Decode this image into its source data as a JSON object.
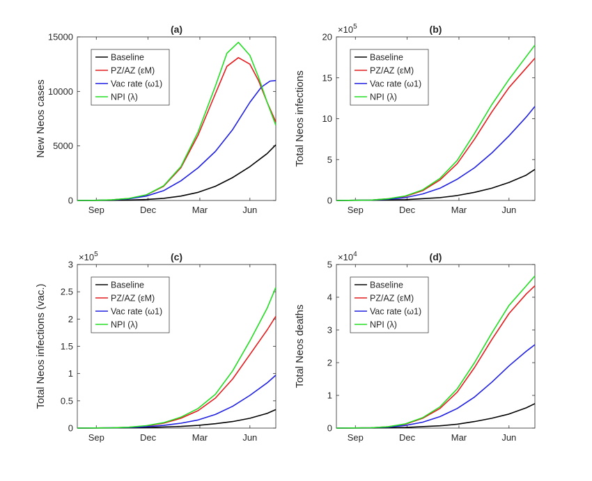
{
  "chart_data": [
    {
      "type": "line",
      "title": "(a)",
      "xlabel": "",
      "ylabel": "New Neos cases",
      "multiplier": "",
      "x_ticks": [
        "Sep",
        "Dec",
        "Mar",
        "Jun"
      ],
      "ylim": [
        0,
        15000
      ],
      "y_ticks": [
        "0",
        "5000",
        "10000",
        "15000"
      ],
      "legend_position": "top-left",
      "series": [
        {
          "name": "Baseline",
          "color": "#000000",
          "x": [
            0,
            30,
            60,
            90,
            120,
            150,
            180,
            210,
            240,
            270,
            300,
            330,
            345
          ],
          "y": [
            0,
            5,
            15,
            40,
            90,
            200,
            400,
            750,
            1300,
            2100,
            3100,
            4300,
            5100
          ]
        },
        {
          "name": "PZ/AZ (εM)",
          "color": "#e41a1c",
          "x": [
            0,
            30,
            60,
            90,
            120,
            150,
            180,
            210,
            240,
            260,
            280,
            300,
            315,
            330,
            345
          ],
          "y": [
            0,
            10,
            60,
            180,
            500,
            1300,
            3000,
            6000,
            9800,
            12300,
            13100,
            12500,
            11000,
            9000,
            7200
          ]
        },
        {
          "name": "Vac rate (ω1)",
          "color": "#1f1fe0",
          "x": [
            0,
            30,
            60,
            90,
            120,
            150,
            180,
            210,
            240,
            270,
            300,
            320,
            335,
            345
          ],
          "y": [
            0,
            10,
            50,
            150,
            400,
            900,
            1800,
            3000,
            4500,
            6500,
            9000,
            10400,
            10950,
            11000
          ]
        },
        {
          "name": "NPI (λ)",
          "color": "#22dd22",
          "x": [
            0,
            30,
            60,
            90,
            120,
            150,
            180,
            210,
            240,
            260,
            280,
            300,
            315,
            330,
            345
          ],
          "y": [
            0,
            10,
            60,
            190,
            520,
            1350,
            3100,
            6300,
            10500,
            13500,
            14500,
            13300,
            11300,
            9000,
            6900
          ]
        }
      ]
    },
    {
      "type": "line",
      "title": "(b)",
      "xlabel": "",
      "ylabel": "Total Neos infections",
      "multiplier": "×10",
      "multiplier_exp": "5",
      "x_ticks": [
        "Sep",
        "Dec",
        "Mar",
        "Jun"
      ],
      "ylim": [
        0,
        20
      ],
      "y_ticks": [
        "0",
        "5",
        "10",
        "15",
        "20"
      ],
      "legend_position": "top-left",
      "series": [
        {
          "name": "Baseline",
          "color": "#000000",
          "x": [
            0,
            60,
            120,
            180,
            210,
            240,
            270,
            300,
            330,
            345
          ],
          "y": [
            0,
            0.03,
            0.1,
            0.35,
            0.6,
            1.0,
            1.5,
            2.2,
            3.1,
            3.8
          ]
        },
        {
          "name": "PZ/AZ (εM)",
          "color": "#e41a1c",
          "x": [
            0,
            60,
            90,
            120,
            150,
            180,
            210,
            240,
            270,
            300,
            330,
            345
          ],
          "y": [
            0,
            0.05,
            0.2,
            0.5,
            1.2,
            2.5,
            4.5,
            7.5,
            10.8,
            13.8,
            16.2,
            17.4
          ]
        },
        {
          "name": "Vac rate (ω1)",
          "color": "#1f1fe0",
          "x": [
            0,
            60,
            90,
            120,
            150,
            180,
            210,
            240,
            270,
            300,
            330,
            345
          ],
          "y": [
            0,
            0.05,
            0.15,
            0.35,
            0.8,
            1.5,
            2.6,
            4.0,
            5.8,
            7.9,
            10.2,
            11.5
          ]
        },
        {
          "name": "NPI (λ)",
          "color": "#22dd22",
          "x": [
            0,
            60,
            90,
            120,
            150,
            180,
            210,
            240,
            270,
            300,
            330,
            345
          ],
          "y": [
            0,
            0.05,
            0.2,
            0.55,
            1.3,
            2.7,
            4.9,
            8.2,
            11.7,
            14.8,
            17.6,
            19.0
          ]
        }
      ]
    },
    {
      "type": "line",
      "title": "(c)",
      "xlabel": "",
      "ylabel": "Total Neos infections (vac.)",
      "multiplier": "×10",
      "multiplier_exp": "5",
      "x_ticks": [
        "Sep",
        "Dec",
        "Mar",
        "Jun"
      ],
      "ylim": [
        0,
        3
      ],
      "y_ticks": [
        "0",
        "0.5",
        "1",
        "1.5",
        "2",
        "2.5",
        "3"
      ],
      "legend_position": "top-left",
      "series": [
        {
          "name": "Baseline",
          "color": "#000000",
          "x": [
            0,
            60,
            120,
            180,
            210,
            240,
            270,
            300,
            330,
            345
          ],
          "y": [
            0,
            0.003,
            0.01,
            0.03,
            0.05,
            0.08,
            0.12,
            0.18,
            0.27,
            0.34
          ]
        },
        {
          "name": "PZ/AZ (εM)",
          "color": "#e41a1c",
          "x": [
            0,
            60,
            90,
            120,
            150,
            180,
            210,
            240,
            270,
            300,
            330,
            345
          ],
          "y": [
            0,
            0.005,
            0.015,
            0.04,
            0.09,
            0.18,
            0.32,
            0.55,
            0.9,
            1.35,
            1.8,
            2.05
          ]
        },
        {
          "name": "Vac rate (ω1)",
          "color": "#1f1fe0",
          "x": [
            0,
            60,
            90,
            120,
            150,
            180,
            210,
            240,
            270,
            300,
            330,
            345
          ],
          "y": [
            0,
            0.005,
            0.012,
            0.025,
            0.05,
            0.09,
            0.15,
            0.25,
            0.4,
            0.6,
            0.83,
            0.97
          ]
        },
        {
          "name": "NPI (λ)",
          "color": "#22dd22",
          "x": [
            0,
            60,
            90,
            120,
            150,
            180,
            210,
            240,
            270,
            300,
            330,
            345
          ],
          "y": [
            0,
            0.005,
            0.016,
            0.045,
            0.1,
            0.2,
            0.36,
            0.62,
            1.05,
            1.6,
            2.2,
            2.58
          ]
        }
      ]
    },
    {
      "type": "line",
      "title": "(d)",
      "xlabel": "",
      "ylabel": "Total Neos deaths",
      "multiplier": "×10",
      "multiplier_exp": "4",
      "x_ticks": [
        "Sep",
        "Dec",
        "Mar",
        "Jun"
      ],
      "ylim": [
        0,
        5
      ],
      "y_ticks": [
        "0",
        "1",
        "2",
        "3",
        "4",
        "5"
      ],
      "legend_position": "top-left",
      "series": [
        {
          "name": "Baseline",
          "color": "#000000",
          "x": [
            0,
            60,
            120,
            180,
            210,
            240,
            270,
            300,
            330,
            345
          ],
          "y": [
            0,
            0.005,
            0.02,
            0.07,
            0.12,
            0.2,
            0.3,
            0.43,
            0.62,
            0.75
          ]
        },
        {
          "name": "PZ/AZ (εM)",
          "color": "#e41a1c",
          "x": [
            0,
            60,
            90,
            120,
            150,
            180,
            210,
            240,
            270,
            300,
            330,
            345
          ],
          "y": [
            0,
            0.01,
            0.04,
            0.12,
            0.3,
            0.6,
            1.1,
            1.85,
            2.7,
            3.5,
            4.1,
            4.35
          ]
        },
        {
          "name": "Vac rate (ω1)",
          "color": "#1f1fe0",
          "x": [
            0,
            60,
            90,
            120,
            150,
            180,
            210,
            240,
            270,
            300,
            330,
            345
          ],
          "y": [
            0,
            0.01,
            0.03,
            0.08,
            0.18,
            0.35,
            0.6,
            0.95,
            1.4,
            1.9,
            2.35,
            2.55
          ]
        },
        {
          "name": "NPI (λ)",
          "color": "#22dd22",
          "x": [
            0,
            60,
            90,
            120,
            150,
            180,
            210,
            240,
            270,
            300,
            330,
            345
          ],
          "y": [
            0,
            0.01,
            0.04,
            0.13,
            0.32,
            0.65,
            1.2,
            2.0,
            2.9,
            3.75,
            4.35,
            4.65
          ]
        }
      ]
    }
  ]
}
